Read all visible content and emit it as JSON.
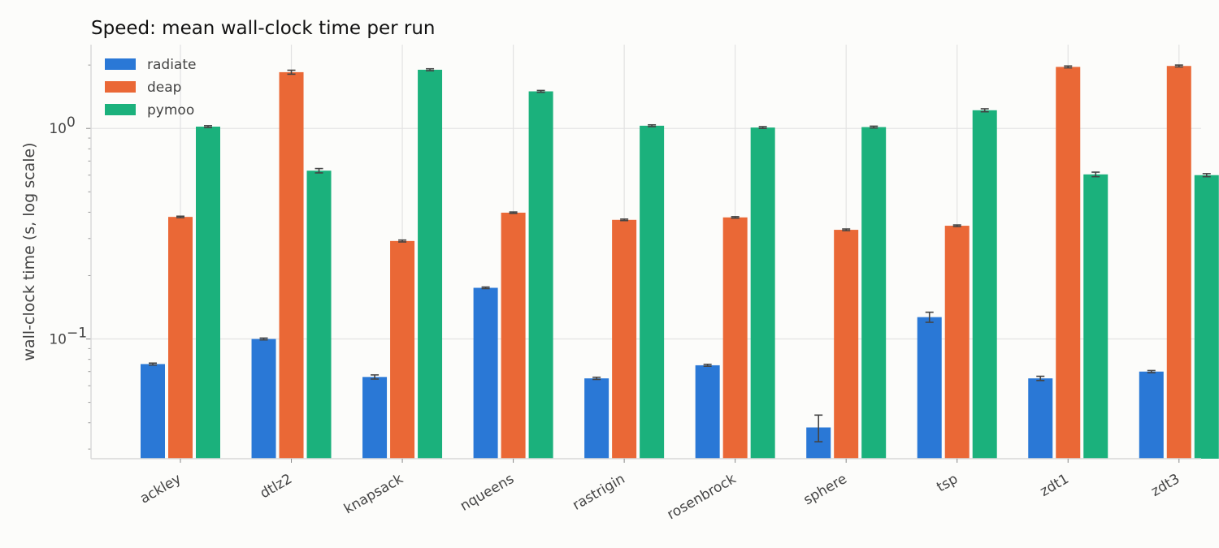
{
  "chart_data": {
    "type": "bar",
    "title": "Speed: mean wall-clock time per run",
    "xlabel": "",
    "ylabel": "wall-clock time (s, log scale)",
    "yscale": "log",
    "ylim": [
      0.027,
      2.5
    ],
    "yticks": [
      {
        "value": 1.0,
        "label": "10",
        "exp": "0"
      },
      {
        "value": 0.1,
        "label": "10",
        "exp": "−1"
      }
    ],
    "grid": true,
    "legend_position": "top-left",
    "categories": [
      "ackley",
      "dtlz2",
      "knapsack",
      "nqueens",
      "rastrigin",
      "rosenbrock",
      "sphere",
      "tsp",
      "zdt1",
      "zdt3"
    ],
    "series": [
      {
        "name": "radiate",
        "color": "#2a78d6",
        "values": [
          0.076,
          0.1,
          0.066,
          0.175,
          0.065,
          0.075,
          0.038,
          0.127,
          0.065,
          0.07
        ],
        "errors": [
          0.0008,
          0.001,
          0.0015,
          0.0015,
          0.0008,
          0.0008,
          0.0055,
          0.007,
          0.0015,
          0.0008
        ]
      },
      {
        "name": "deap",
        "color": "#ea6836",
        "values": [
          0.38,
          1.85,
          0.292,
          0.398,
          0.368,
          0.378,
          0.33,
          0.345,
          1.96,
          1.98
        ],
        "errors": [
          0.003,
          0.04,
          0.003,
          0.003,
          0.003,
          0.003,
          0.003,
          0.003,
          0.02,
          0.02
        ]
      },
      {
        "name": "pymoo",
        "color": "#1bb17c",
        "values": [
          1.02,
          0.63,
          1.9,
          1.5,
          1.03,
          1.01,
          1.015,
          1.22,
          0.605,
          0.6
        ],
        "errors": [
          0.01,
          0.015,
          0.02,
          0.015,
          0.01,
          0.01,
          0.01,
          0.02,
          0.015,
          0.01
        ]
      }
    ]
  }
}
